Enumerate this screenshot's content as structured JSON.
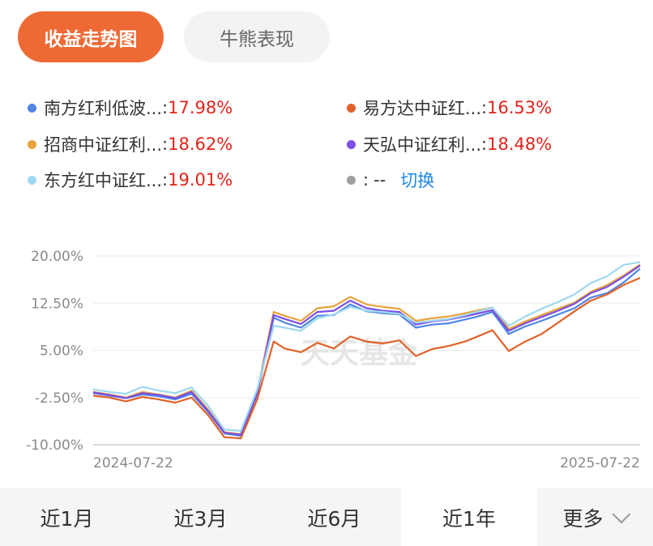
{
  "tabs": {
    "active": "收益走势图",
    "other": "牛熊表现"
  },
  "legend": [
    {
      "name": "南方红利低波...",
      "sep": ":",
      "value": "17.98%",
      "color": "#4E86E4"
    },
    {
      "name": "易方达中证红...",
      "sep": ":",
      "value": "16.53%",
      "color": "#E0622A"
    },
    {
      "name": "招商中证红利...",
      "sep": ":",
      "value": "18.62%",
      "color": "#E8A33A"
    },
    {
      "name": "天弘中证红利...",
      "sep": ":",
      "value": "18.48%",
      "color": "#7B4FE6"
    },
    {
      "name": "东方红中证红...",
      "sep": ":",
      "value": "19.01%",
      "color": "#9ED8F0"
    },
    {
      "name": "",
      "sep": ":",
      "value": "--",
      "color": "#9E9E9E",
      "action": "切换"
    }
  ],
  "watermark": "天天基金",
  "chart_data": {
    "type": "line",
    "ytick_labels": [
      "20.00%",
      "12.50%",
      "5.00%",
      "-2.50%",
      "-10.00%"
    ],
    "yticks": [
      20,
      12.5,
      5,
      -2.5,
      -10
    ],
    "ylim": [
      -10,
      20
    ],
    "xtick_labels": [
      "2024-07-22",
      "2025-07-22"
    ],
    "xlim": [
      0,
      100
    ],
    "series": [
      {
        "name": "南方红利低波...",
        "color": "#4E86E4",
        "x": [
          0,
          3,
          6,
          9,
          12,
          15,
          18,
          21,
          24,
          27,
          30,
          33,
          35,
          38,
          41,
          44,
          47,
          50,
          53,
          56,
          59,
          62,
          65,
          68,
          70,
          73,
          76,
          79,
          82,
          85,
          88,
          91,
          94,
          97,
          100
        ],
        "y": [
          -1.8,
          -2.2,
          -2.6,
          -2,
          -2.3,
          -2.8,
          -1.9,
          -4.8,
          -8.2,
          -8.6,
          -2,
          10.2,
          9.4,
          8.6,
          10.5,
          10.6,
          12.3,
          11.2,
          10.9,
          10.7,
          8.6,
          9.1,
          9.3,
          9.9,
          10.3,
          11.1,
          7.6,
          8.8,
          9.7,
          10.7,
          11.7,
          13.4,
          14.1,
          15.8,
          17.98
        ]
      },
      {
        "name": "易方达中证红...",
        "color": "#E0622A",
        "x": [
          0,
          3,
          6,
          9,
          12,
          15,
          18,
          21,
          24,
          27,
          30,
          33,
          35,
          38,
          41,
          44,
          47,
          50,
          53,
          56,
          59,
          62,
          65,
          68,
          70,
          73,
          76,
          79,
          82,
          85,
          88,
          91,
          94,
          97,
          100
        ],
        "y": [
          -2.2,
          -2.5,
          -3.1,
          -2.4,
          -2.8,
          -3.3,
          -2.5,
          -5.3,
          -8.8,
          -9,
          -2.8,
          6.4,
          5.3,
          4.7,
          6.2,
          5.3,
          7.2,
          6.4,
          6.1,
          6.6,
          4.1,
          5.2,
          5.7,
          6.4,
          7.1,
          8.2,
          4.9,
          6.4,
          7.6,
          9.4,
          11.2,
          12.9,
          13.9,
          15.4,
          16.53
        ]
      },
      {
        "name": "招商中证红利...",
        "color": "#E8A33A",
        "x": [
          0,
          3,
          6,
          9,
          12,
          15,
          18,
          21,
          24,
          27,
          30,
          33,
          35,
          38,
          41,
          44,
          47,
          50,
          53,
          56,
          59,
          62,
          65,
          68,
          70,
          73,
          76,
          79,
          82,
          85,
          88,
          91,
          94,
          97,
          100
        ],
        "y": [
          -1.6,
          -2,
          -2.5,
          -1.6,
          -2,
          -2.5,
          -1.4,
          -4.4,
          -8,
          -8.3,
          -1.6,
          11.1,
          10.5,
          9.7,
          11.7,
          12,
          13.5,
          12.3,
          11.9,
          11.6,
          9.7,
          10.1,
          10.4,
          10.9,
          11.3,
          11.8,
          8.4,
          9.6,
          10.6,
          11.6,
          12.6,
          14.3,
          15.4,
          16.9,
          18.62
        ]
      },
      {
        "name": "天弘中证红利...",
        "color": "#7B4FE6",
        "x": [
          0,
          3,
          6,
          9,
          12,
          15,
          18,
          21,
          24,
          27,
          30,
          33,
          35,
          38,
          41,
          44,
          47,
          50,
          53,
          56,
          59,
          62,
          65,
          68,
          70,
          73,
          76,
          79,
          82,
          85,
          88,
          91,
          94,
          97,
          100
        ],
        "y": [
          -1.7,
          -2.1,
          -2.6,
          -1.8,
          -2.1,
          -2.6,
          -1.6,
          -4.6,
          -8.1,
          -8.4,
          -1.8,
          10.6,
          10,
          9.2,
          11.1,
          11.3,
          12.9,
          11.7,
          11.3,
          11.1,
          9.1,
          9.6,
          9.9,
          10.4,
          10.8,
          11.4,
          8.1,
          9.3,
          10.3,
          11.3,
          12.4,
          14.1,
          15.1,
          16.7,
          18.48
        ]
      },
      {
        "name": "东方红中证红...",
        "color": "#9ED8F0",
        "x": [
          0,
          3,
          6,
          9,
          12,
          15,
          18,
          21,
          24,
          27,
          30,
          33,
          35,
          38,
          41,
          44,
          47,
          50,
          53,
          56,
          59,
          62,
          65,
          68,
          70,
          73,
          76,
          79,
          82,
          85,
          88,
          91,
          94,
          97,
          100
        ],
        "y": [
          -1.2,
          -1.6,
          -1.9,
          -0.8,
          -1.4,
          -1.8,
          -0.9,
          -3.8,
          -7.6,
          -7.8,
          -1.2,
          8.9,
          8.6,
          8.1,
          10.1,
          10.7,
          11.9,
          11.3,
          11.1,
          10.8,
          9.4,
          9.7,
          10,
          10.6,
          11.1,
          11.8,
          8.9,
          10.4,
          11.6,
          12.7,
          13.9,
          15.7,
          16.8,
          18.6,
          19.01
        ]
      }
    ]
  },
  "range_tabs": [
    "近1月",
    "近3月",
    "近6月",
    "近1年",
    "更多"
  ],
  "range_active": "近1年"
}
